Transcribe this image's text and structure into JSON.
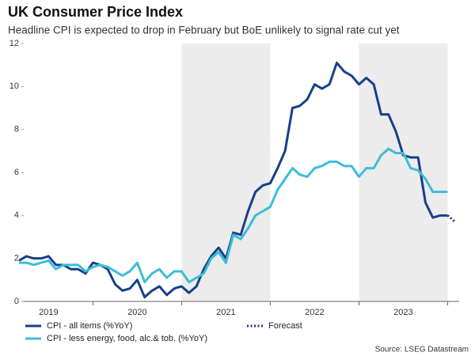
{
  "chart_data": {
    "type": "line",
    "title": "UK Consumer Price Index",
    "subtitle": "Headline CPI is expected to drop in February but BoE unlikely to signal rate cut yet",
    "source": "Source: LSEG Datastream",
    "x": [
      2019.167,
      2019.25,
      2019.333,
      2019.417,
      2019.5,
      2019.583,
      2019.667,
      2019.75,
      2019.833,
      2019.917,
      2020,
      2020.083,
      2020.167,
      2020.25,
      2020.333,
      2020.417,
      2020.5,
      2020.583,
      2020.667,
      2020.75,
      2020.833,
      2020.917,
      2021,
      2021.083,
      2021.167,
      2021.25,
      2021.333,
      2021.417,
      2021.5,
      2021.583,
      2021.667,
      2021.75,
      2021.833,
      2021.917,
      2022,
      2022.083,
      2022.167,
      2022.25,
      2022.333,
      2022.417,
      2022.5,
      2022.583,
      2022.667,
      2022.75,
      2022.833,
      2022.917,
      2023,
      2023.083,
      2023.167,
      2023.25,
      2023.333,
      2023.417,
      2023.5,
      2023.583,
      2023.667,
      2023.75,
      2023.833,
      2023.917,
      2024,
      2024.083
    ],
    "series": [
      {
        "name": "CPI - all items (%YoY)",
        "color": "#173f8a",
        "dash": false,
        "values": [
          1.9,
          2.1,
          2.0,
          2.0,
          2.1,
          1.7,
          1.7,
          1.5,
          1.5,
          1.3,
          1.8,
          1.7,
          1.5,
          0.8,
          0.5,
          0.6,
          1.0,
          0.2,
          0.5,
          0.7,
          0.3,
          0.6,
          0.7,
          0.4,
          0.7,
          1.5,
          2.1,
          2.5,
          2.0,
          3.2,
          3.1,
          4.2,
          5.1,
          5.4,
          5.5,
          6.2,
          7.0,
          9.0,
          9.1,
          9.4,
          10.1,
          9.9,
          10.1,
          11.1,
          10.7,
          10.5,
          10.1,
          10.4,
          10.1,
          8.7,
          8.7,
          7.9,
          6.8,
          6.7,
          6.7,
          4.6,
          3.9,
          4.0,
          4.0,
          null
        ]
      },
      {
        "name": "CPI - less energy, food, alc.& tob. (%YoY)",
        "color": "#3ebcd9",
        "dash": false,
        "values": [
          1.8,
          1.8,
          1.7,
          1.8,
          1.9,
          1.5,
          1.7,
          1.7,
          1.7,
          1.4,
          1.6,
          1.7,
          1.6,
          1.4,
          1.2,
          1.4,
          1.8,
          0.9,
          1.3,
          1.5,
          1.1,
          1.4,
          1.4,
          0.9,
          1.1,
          1.3,
          2.0,
          2.3,
          1.8,
          3.1,
          2.9,
          3.4,
          4.0,
          4.2,
          4.4,
          5.2,
          5.7,
          6.2,
          5.9,
          5.8,
          6.2,
          6.3,
          6.5,
          6.5,
          6.3,
          6.3,
          5.8,
          6.2,
          6.2,
          6.8,
          7.1,
          6.9,
          6.9,
          6.2,
          6.1,
          5.7,
          5.1,
          5.1,
          5.1,
          null
        ]
      },
      {
        "name": "Forecast",
        "color": "#173f8a",
        "dash": true,
        "values": [
          null,
          null,
          null,
          null,
          null,
          null,
          null,
          null,
          null,
          null,
          null,
          null,
          null,
          null,
          null,
          null,
          null,
          null,
          null,
          null,
          null,
          null,
          null,
          null,
          null,
          null,
          null,
          null,
          null,
          null,
          null,
          null,
          null,
          null,
          null,
          null,
          null,
          null,
          null,
          null,
          null,
          null,
          null,
          null,
          null,
          null,
          null,
          null,
          null,
          null,
          null,
          null,
          null,
          null,
          null,
          null,
          null,
          null,
          4.0,
          3.7
        ]
      }
    ],
    "xlim": [
      2019.22,
      2024.13
    ],
    "xticks": [
      {
        "value": 2019.5,
        "label": "2019"
      },
      {
        "value": 2020.5,
        "label": "2020"
      },
      {
        "value": 2021.5,
        "label": "2021"
      },
      {
        "value": 2022.5,
        "label": "2022"
      },
      {
        "value": 2023.5,
        "label": "2023"
      }
    ],
    "ylim": [
      0,
      12
    ],
    "yticks": [
      0,
      2,
      4,
      6,
      8,
      10,
      12
    ],
    "grid": false
  }
}
